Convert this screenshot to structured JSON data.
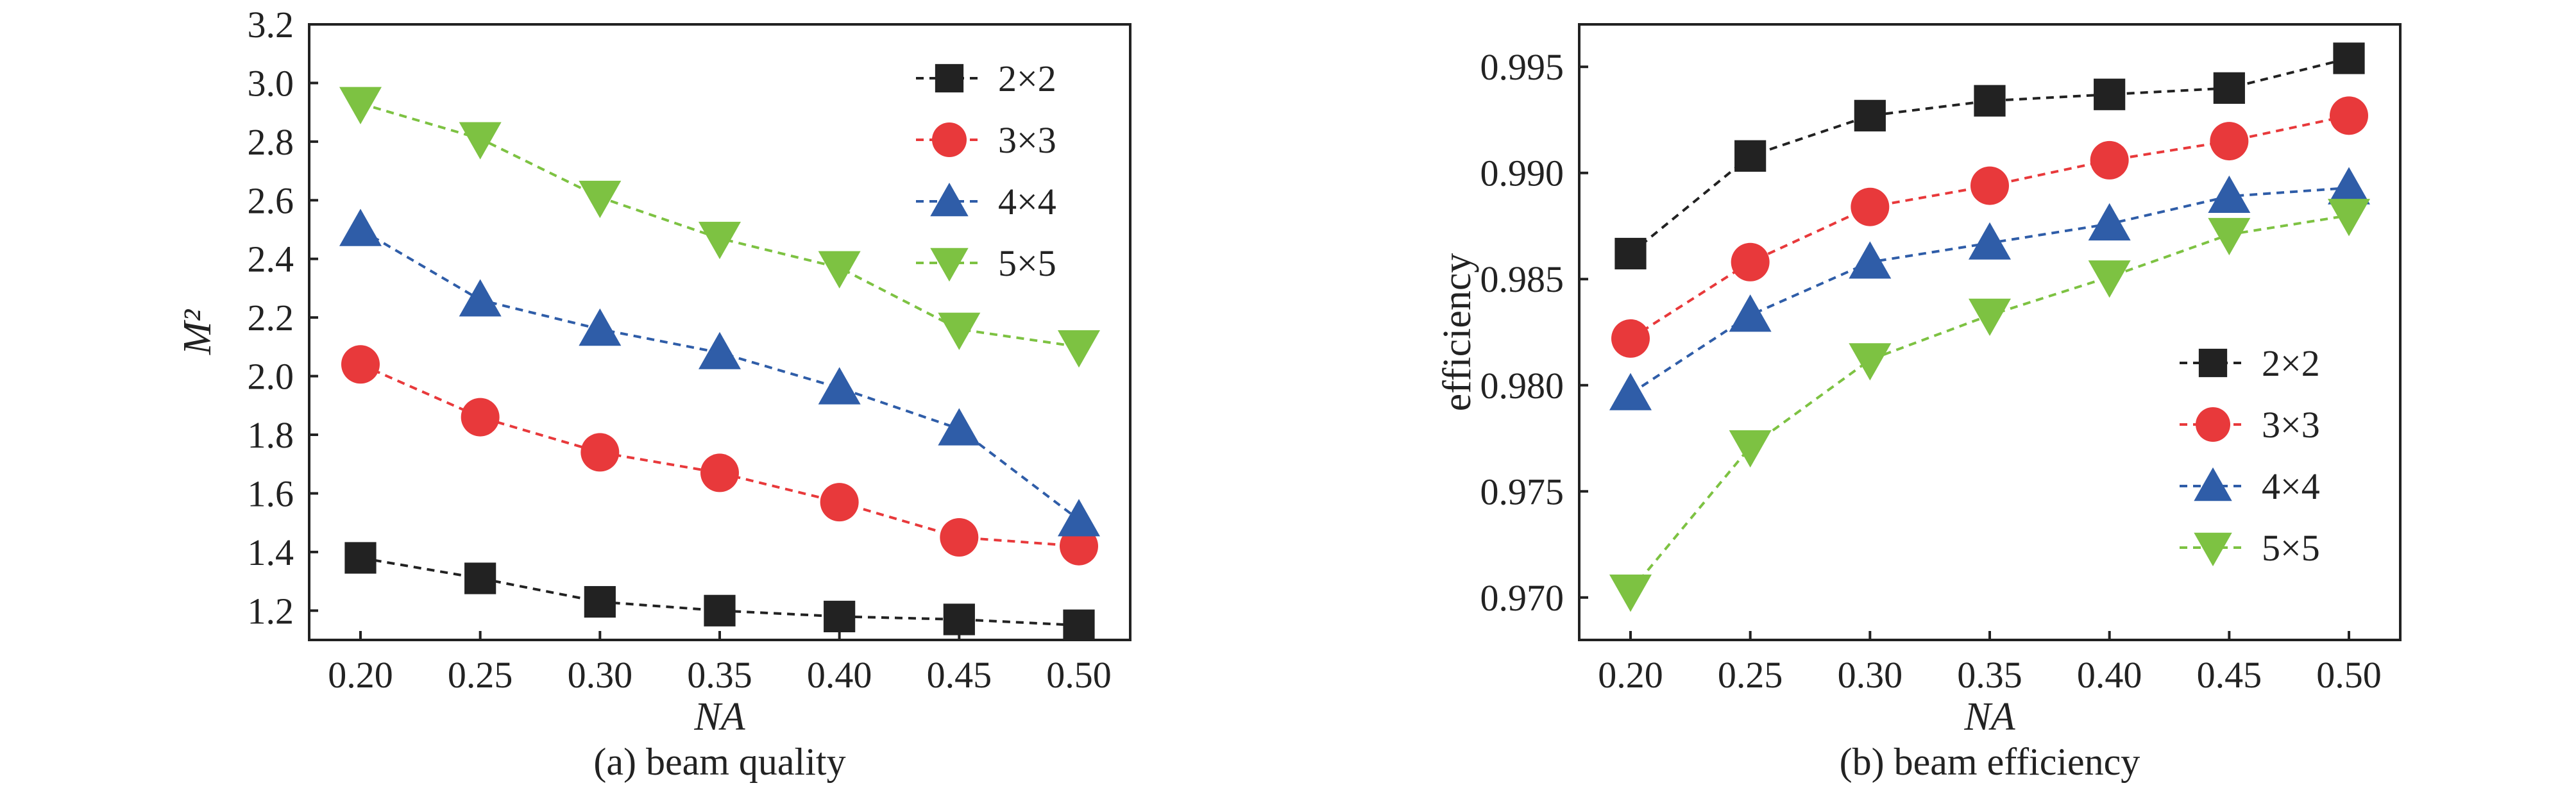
{
  "chart_data": [
    {
      "type": "line",
      "caption": "(a) beam quality",
      "xlabel": "NA",
      "ylabel": "M²",
      "x": [
        0.2,
        0.25,
        0.3,
        0.35,
        0.4,
        0.45,
        0.5
      ],
      "x_ticks": [
        "0.20",
        "0.25",
        "0.30",
        "0.35",
        "0.40",
        "0.45",
        "0.50"
      ],
      "ylim": [
        1.1,
        3.2
      ],
      "y_ticks": [
        "1.2",
        "1.4",
        "1.6",
        "1.8",
        "2.0",
        "2.2",
        "2.4",
        "2.6",
        "2.8",
        "3.0",
        "3.2"
      ],
      "y_tick_values": [
        1.2,
        1.4,
        1.6,
        1.8,
        2.0,
        2.2,
        2.4,
        2.6,
        2.8,
        3.0,
        3.2
      ],
      "legend_position": "top-right",
      "grid": false,
      "series": [
        {
          "name": "2×2",
          "marker": "square",
          "color": "#222222",
          "values": [
            1.38,
            1.31,
            1.23,
            1.2,
            1.18,
            1.17,
            1.15
          ]
        },
        {
          "name": "3×3",
          "marker": "circle",
          "color": "#e8393b",
          "values": [
            2.04,
            1.86,
            1.74,
            1.67,
            1.57,
            1.45,
            1.42
          ]
        },
        {
          "name": "4×4",
          "marker": "triangle-up",
          "color": "#2f5da8",
          "values": [
            2.5,
            2.26,
            2.16,
            2.08,
            1.96,
            1.82,
            1.51
          ]
        },
        {
          "name": "5×5",
          "marker": "triangle-down",
          "color": "#7dc242",
          "values": [
            2.93,
            2.81,
            2.61,
            2.47,
            2.37,
            2.16,
            2.1
          ]
        }
      ]
    },
    {
      "type": "line",
      "caption": "(b) beam efficiency",
      "xlabel": "NA",
      "ylabel": "efficiency",
      "x": [
        0.2,
        0.25,
        0.3,
        0.35,
        0.4,
        0.45,
        0.5
      ],
      "x_ticks": [
        "0.20",
        "0.25",
        "0.30",
        "0.35",
        "0.40",
        "0.45",
        "0.50"
      ],
      "ylim": [
        0.968,
        0.997
      ],
      "y_ticks": [
        "0.970",
        "0.975",
        "0.980",
        "0.985",
        "0.990",
        "0.995"
      ],
      "y_tick_values": [
        0.97,
        0.975,
        0.98,
        0.985,
        0.99,
        0.995
      ],
      "legend_position": "lower-right",
      "grid": false,
      "series": [
        {
          "name": "2×2",
          "marker": "square",
          "color": "#222222",
          "values": [
            0.9862,
            0.9908,
            0.9927,
            0.9934,
            0.9937,
            0.994,
            0.9954
          ]
        },
        {
          "name": "3×3",
          "marker": "circle",
          "color": "#e8393b",
          "values": [
            0.9822,
            0.9858,
            0.9884,
            0.9894,
            0.9906,
            0.9915,
            0.9927
          ]
        },
        {
          "name": "4×4",
          "marker": "triangle-up",
          "color": "#2f5da8",
          "values": [
            0.9796,
            0.9833,
            0.9858,
            0.9867,
            0.9876,
            0.9889,
            0.9893
          ]
        },
        {
          "name": "5×5",
          "marker": "triangle-down",
          "color": "#7dc242",
          "values": [
            0.9703,
            0.9771,
            0.9812,
            0.9833,
            0.9851,
            0.9871,
            0.988
          ]
        }
      ]
    }
  ]
}
